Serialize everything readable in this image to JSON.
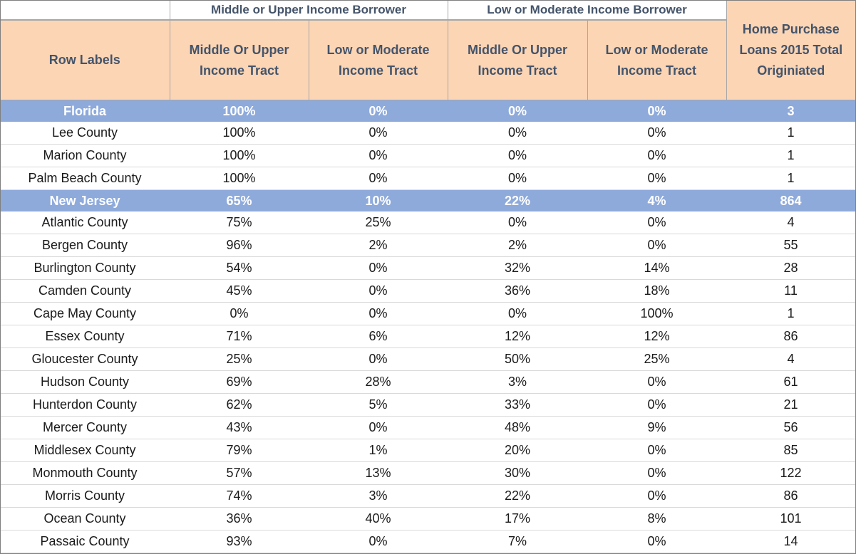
{
  "headers": {
    "group_middle_upper": "Middle or Upper Income Borrower",
    "group_low_moderate": "Low or Moderate Income Borrower",
    "row_labels": "Row Labels",
    "tract_middle_upper": "Middle Or Upper Income Tract",
    "tract_low_moderate": "Low or Moderate Income Tract",
    "total": "Home Purchase Loans 2015 Total Originiated"
  },
  "colors": {
    "header_fill": "#fcd5b5",
    "header_text": "#44546a",
    "state_fill": "#8eaadb",
    "state_text": "#ffffff"
  },
  "rows": [
    {
      "type": "state",
      "label": "Florida",
      "c1": "100%",
      "c2": "0%",
      "c3": "0%",
      "c4": "0%",
      "total": "3"
    },
    {
      "type": "county",
      "label": "Lee County",
      "c1": "100%",
      "c2": "0%",
      "c3": "0%",
      "c4": "0%",
      "total": "1"
    },
    {
      "type": "county",
      "label": "Marion County",
      "c1": "100%",
      "c2": "0%",
      "c3": "0%",
      "c4": "0%",
      "total": "1"
    },
    {
      "type": "county",
      "label": "Palm Beach County",
      "c1": "100%",
      "c2": "0%",
      "c3": "0%",
      "c4": "0%",
      "total": "1"
    },
    {
      "type": "state",
      "label": "New Jersey",
      "c1": "65%",
      "c2": "10%",
      "c3": "22%",
      "c4": "4%",
      "total": "864"
    },
    {
      "type": "county",
      "label": "Atlantic County",
      "c1": "75%",
      "c2": "25%",
      "c3": "0%",
      "c4": "0%",
      "total": "4"
    },
    {
      "type": "county",
      "label": "Bergen County",
      "c1": "96%",
      "c2": "2%",
      "c3": "2%",
      "c4": "0%",
      "total": "55"
    },
    {
      "type": "county",
      "label": "Burlington County",
      "c1": "54%",
      "c2": "0%",
      "c3": "32%",
      "c4": "14%",
      "total": "28"
    },
    {
      "type": "county",
      "label": "Camden County",
      "c1": "45%",
      "c2": "0%",
      "c3": "36%",
      "c4": "18%",
      "total": "11"
    },
    {
      "type": "county",
      "label": "Cape May County",
      "c1": "0%",
      "c2": "0%",
      "c3": "0%",
      "c4": "100%",
      "total": "1"
    },
    {
      "type": "county",
      "label": "Essex County",
      "c1": "71%",
      "c2": "6%",
      "c3": "12%",
      "c4": "12%",
      "total": "86"
    },
    {
      "type": "county",
      "label": "Gloucester County",
      "c1": "25%",
      "c2": "0%",
      "c3": "50%",
      "c4": "25%",
      "total": "4"
    },
    {
      "type": "county",
      "label": "Hudson County",
      "c1": "69%",
      "c2": "28%",
      "c3": "3%",
      "c4": "0%",
      "total": "61"
    },
    {
      "type": "county",
      "label": "Hunterdon County",
      "c1": "62%",
      "c2": "5%",
      "c3": "33%",
      "c4": "0%",
      "total": "21"
    },
    {
      "type": "county",
      "label": "Mercer County",
      "c1": "43%",
      "c2": "0%",
      "c3": "48%",
      "c4": "9%",
      "total": "56"
    },
    {
      "type": "county",
      "label": "Middlesex County",
      "c1": "79%",
      "c2": "1%",
      "c3": "20%",
      "c4": "0%",
      "total": "85"
    },
    {
      "type": "county",
      "label": "Monmouth County",
      "c1": "57%",
      "c2": "13%",
      "c3": "30%",
      "c4": "0%",
      "total": "122"
    },
    {
      "type": "county",
      "label": "Morris County",
      "c1": "74%",
      "c2": "3%",
      "c3": "22%",
      "c4": "0%",
      "total": "86"
    },
    {
      "type": "county",
      "label": "Ocean County",
      "c1": "36%",
      "c2": "40%",
      "c3": "17%",
      "c4": "8%",
      "total": "101"
    },
    {
      "type": "county",
      "label": "Passaic County",
      "c1": "93%",
      "c2": "0%",
      "c3": "7%",
      "c4": "0%",
      "total": "14"
    }
  ]
}
